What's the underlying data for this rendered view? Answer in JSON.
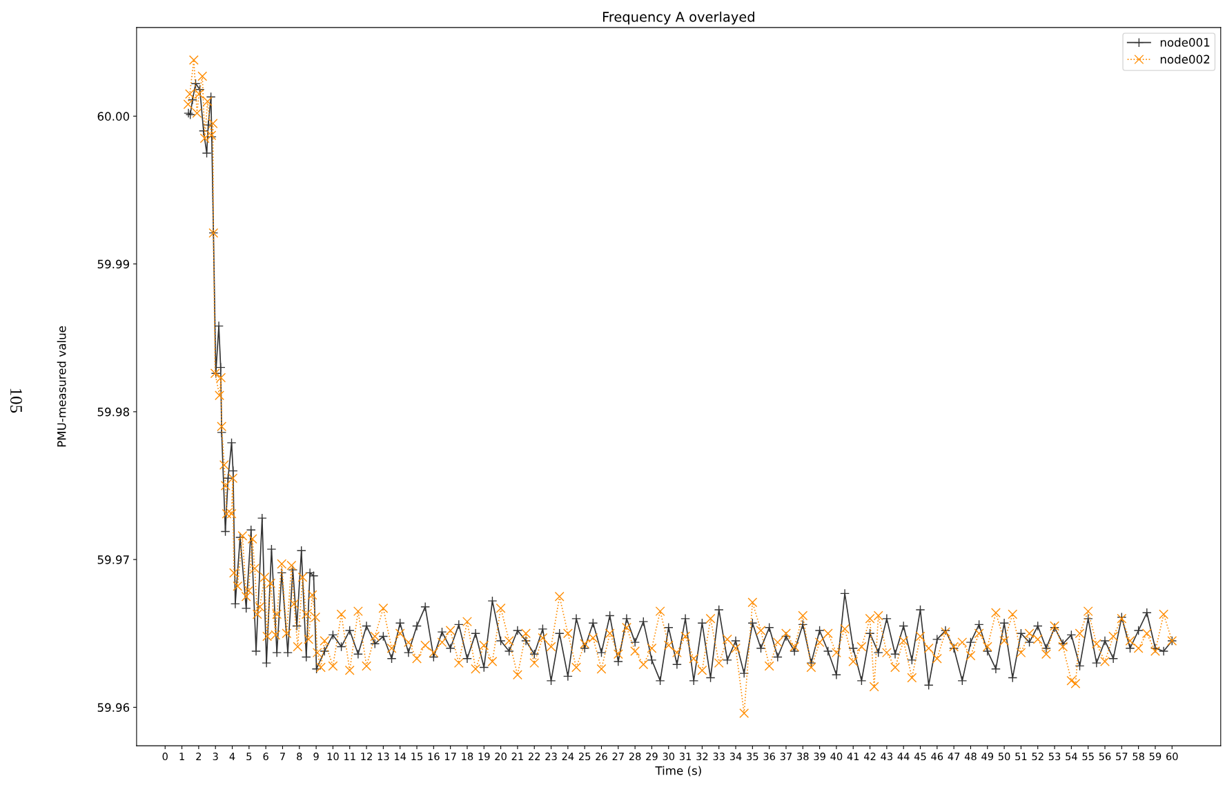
{
  "chart_data": {
    "type": "line",
    "title": "Frequency A overlayed",
    "xlabel": "Time (s)",
    "ylabel": "PMU-measured value",
    "annotations": [
      "105"
    ],
    "xlim": [
      -1.7,
      62.9
    ],
    "ylim": [
      59.9574,
      60.006
    ],
    "xticks": [
      0,
      1,
      2,
      3,
      4,
      5,
      6,
      7,
      8,
      9,
      10,
      11,
      12,
      13,
      14,
      15,
      16,
      17,
      18,
      19,
      20,
      21,
      22,
      23,
      24,
      25,
      26,
      27,
      28,
      29,
      30,
      31,
      32,
      33,
      34,
      35,
      36,
      37,
      38,
      39,
      40,
      41,
      42,
      43,
      44,
      45,
      46,
      47,
      48,
      49,
      50,
      51,
      52,
      53,
      54,
      55,
      56,
      57,
      58,
      59,
      60
    ],
    "yticks": [
      59.96,
      59.97,
      59.98,
      59.99,
      {
        "value": 60,
        "label": "60.00"
      }
    ],
    "grid": false,
    "legend": "top right",
    "series": [
      {
        "name": "node001",
        "color": "#333333",
        "marker": "plus",
        "line_style": "solid",
        "x": [
          1.39,
          1.5,
          1.63,
          1.82,
          2.07,
          2.29,
          2.48,
          2.57,
          2.73,
          2.78,
          2.88,
          3.02,
          3.2,
          3.31,
          3.37,
          3.59,
          3.75,
          3.96,
          4.05,
          4.18,
          4.47,
          4.83,
          5.12,
          5.42,
          5.78,
          6.04,
          6.34,
          6.66,
          6.95,
          7.31,
          7.61,
          7.85,
          8.12,
          8.41,
          8.63,
          8.85,
          9.02,
          9.5,
          10,
          10.5,
          11,
          11.5,
          12,
          12.5,
          13,
          13.5,
          14,
          14.5,
          15,
          15.5,
          16,
          16.5,
          17,
          17.5,
          18,
          18.5,
          19,
          19.5,
          20,
          20.5,
          21,
          21.5,
          22,
          22.5,
          23,
          23.5,
          24,
          24.5,
          25,
          25.5,
          26,
          26.5,
          27,
          27.5,
          28,
          28.5,
          29,
          29.5,
          30,
          30.5,
          31,
          31.5,
          32,
          32.5,
          33,
          33.5,
          34,
          34.5,
          35,
          35.5,
          36,
          36.5,
          37,
          37.5,
          38,
          38.5,
          39,
          39.5,
          40,
          40.5,
          41,
          41.5,
          42,
          42.5,
          43,
          43.5,
          44,
          44.5,
          45,
          45.5,
          46,
          46.5,
          47,
          47.5,
          48,
          48.5,
          49,
          49.5,
          50,
          50.5,
          51,
          51.5,
          52,
          52.5,
          53,
          53.5,
          54,
          54.5,
          55,
          55.5,
          56,
          56.5,
          57,
          57.5,
          58,
          58.5,
          59,
          59.5,
          60
        ],
        "values": [
          60.0002,
          60.0001,
          60.0011,
          60.0022,
          60.0018,
          59.999,
          59.9975,
          59.9994,
          60.0013,
          59.9986,
          59.9921,
          59.9826,
          59.9858,
          59.983,
          59.9786,
          59.9719,
          59.9755,
          59.9779,
          59.976,
          59.967,
          59.9715,
          59.9667,
          59.972,
          59.9638,
          59.9728,
          59.963,
          59.9707,
          59.9637,
          59.9691,
          59.9637,
          59.9693,
          59.9655,
          59.9706,
          59.9634,
          59.9691,
          59.9689,
          59.9626,
          59.9638,
          59.9649,
          59.9641,
          59.9652,
          59.9636,
          59.9655,
          59.9643,
          59.9648,
          59.9633,
          59.9657,
          59.9637,
          59.9655,
          59.9668,
          59.9634,
          59.9651,
          59.964,
          59.9656,
          59.9633,
          59.965,
          59.9627,
          59.9672,
          59.9645,
          59.9638,
          59.9652,
          59.9645,
          59.9636,
          59.9653,
          59.9618,
          59.965,
          59.9621,
          59.966,
          59.964,
          59.9657,
          59.9637,
          59.9662,
          59.9631,
          59.966,
          59.9644,
          59.9658,
          59.9632,
          59.9618,
          59.9654,
          59.9629,
          59.966,
          59.9618,
          59.9657,
          59.962,
          59.9666,
          59.9632,
          59.9645,
          59.9623,
          59.9657,
          59.964,
          59.9654,
          59.9634,
          59.9648,
          59.9638,
          59.9656,
          59.963,
          59.9652,
          59.9638,
          59.9622,
          59.9677,
          59.964,
          59.9618,
          59.965,
          59.9637,
          59.966,
          59.9636,
          59.9655,
          59.9632,
          59.9666,
          59.9615,
          59.9646,
          59.9652,
          59.964,
          59.9618,
          59.9644,
          59.9656,
          59.9638,
          59.9626,
          59.9657,
          59.962,
          59.965,
          59.9644,
          59.9655,
          59.964,
          59.9654,
          59.9643,
          59.9649,
          59.9628,
          59.966,
          59.963,
          59.9645,
          59.9633,
          59.9661,
          59.964,
          59.9652,
          59.9664,
          59.964,
          59.9638,
          59.9645
        ]
      },
      {
        "name": "node002",
        "color": "#ff8c00",
        "marker": "cross",
        "line_style": "dotted",
        "x": [
          1.37,
          1.47,
          1.71,
          1.9,
          2.02,
          2.22,
          2.36,
          2.53,
          2.76,
          2.85,
          2.88,
          2.98,
          3.24,
          3.33,
          3.37,
          3.52,
          3.6,
          3.67,
          3.96,
          4.03,
          4.1,
          4.32,
          4.61,
          4.83,
          4.98,
          5.2,
          5.34,
          5.49,
          5.64,
          5.93,
          6.08,
          6.29,
          6.58,
          6.66,
          6.95,
          7.24,
          7.53,
          7.68,
          7.9,
          8.19,
          8.41,
          8.55,
          8.77,
          8.96,
          9.07,
          9.28,
          9.5,
          10,
          10.5,
          11,
          11.5,
          12,
          12.5,
          13,
          13.5,
          14,
          14.5,
          15,
          15.5,
          16,
          16.5,
          17,
          17.5,
          18,
          18.5,
          19,
          19.5,
          20,
          20.5,
          21,
          21.5,
          22,
          22.5,
          23,
          23.5,
          24,
          24.5,
          25,
          25.5,
          26,
          26.5,
          27,
          27.5,
          28,
          28.5,
          29,
          29.5,
          30,
          30.5,
          31,
          31.5,
          32,
          32.5,
          33,
          33.5,
          34,
          34.5,
          35,
          35.5,
          36,
          36.5,
          37,
          37.5,
          38,
          38.5,
          39,
          39.5,
          40,
          40.5,
          41,
          41.5,
          42,
          42.25,
          42.5,
          43,
          43.5,
          44,
          44.5,
          45,
          45.5,
          46,
          46.5,
          47,
          47.5,
          48,
          48.5,
          49,
          49.5,
          50,
          50.5,
          51,
          51.5,
          52,
          52.5,
          53,
          53.5,
          54,
          54.25,
          54.5,
          55,
          55.5,
          56,
          56.5,
          57,
          57.5,
          58,
          58.5,
          59,
          59.5,
          60
        ],
        "values": [
          60.0008,
          60.0015,
          60.0038,
          60.0002,
          60.0015,
          60.0027,
          59.9985,
          60.001,
          59.9987,
          59.9995,
          59.9921,
          59.9826,
          59.9811,
          59.9823,
          59.979,
          59.9764,
          59.975,
          59.9731,
          59.9731,
          59.9755,
          59.9691,
          59.9682,
          59.9716,
          59.9675,
          59.9679,
          59.9714,
          59.9694,
          59.9663,
          59.9668,
          59.9688,
          59.9648,
          59.9684,
          59.9649,
          59.9663,
          59.9697,
          59.965,
          59.9696,
          59.967,
          59.9641,
          59.9688,
          59.9663,
          59.9646,
          59.9676,
          59.9661,
          59.9637,
          59.9627,
          59.9645,
          59.9628,
          59.9663,
          59.9625,
          59.9665,
          59.9628,
          59.9648,
          59.9667,
          59.964,
          59.965,
          59.9644,
          59.9633,
          59.9642,
          59.9637,
          59.9644,
          59.9652,
          59.963,
          59.9658,
          59.9626,
          59.9642,
          59.9631,
          59.9667,
          59.9645,
          59.9622,
          59.965,
          59.963,
          59.9647,
          59.9641,
          59.9675,
          59.965,
          59.9627,
          59.9643,
          59.9647,
          59.9626,
          59.965,
          59.9636,
          59.9654,
          59.9638,
          59.9629,
          59.964,
          59.9665,
          59.9642,
          59.9637,
          59.9648,
          59.9633,
          59.9625,
          59.966,
          59.963,
          59.9646,
          59.964,
          59.9596,
          59.9671,
          59.9652,
          59.9628,
          59.9644,
          59.965,
          59.9641,
          59.9662,
          59.9627,
          59.9644,
          59.965,
          59.9637,
          59.9653,
          59.9631,
          59.9641,
          59.966,
          59.9614,
          59.9662,
          59.9637,
          59.9627,
          59.9645,
          59.962,
          59.9648,
          59.964,
          59.9633,
          59.9651,
          59.9641,
          59.9644,
          59.9635,
          59.965,
          59.9641,
          59.9664,
          59.9645,
          59.9663,
          59.9637,
          59.965,
          59.9646,
          59.9636,
          59.9655,
          59.9641,
          59.9618,
          59.9616,
          59.965,
          59.9665,
          59.9643,
          59.9631,
          59.9648,
          59.966,
          59.9645,
          59.964,
          59.965,
          59.9638,
          59.9663,
          59.9645
        ]
      }
    ]
  }
}
